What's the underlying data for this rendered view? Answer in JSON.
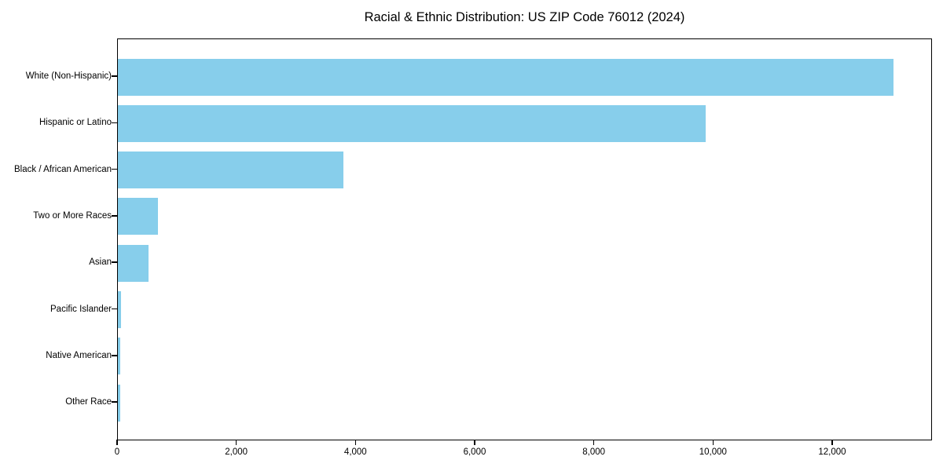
{
  "chart_data": {
    "type": "bar",
    "orientation": "horizontal",
    "title": "Racial & Ethnic Distribution: US ZIP Code 76012 (2024)",
    "categories": [
      "White (Non-Hispanic)",
      "Hispanic or Latino",
      "Black / African American",
      "Two or More Races",
      "Asian",
      "Pacific Islander",
      "Native American",
      "Other Race"
    ],
    "values": [
      13010,
      9870,
      3790,
      675,
      510,
      55,
      45,
      40
    ],
    "xlabel": "",
    "ylabel": "",
    "xlim": [
      0,
      13675
    ],
    "x_ticks": [
      0,
      2000,
      4000,
      6000,
      8000,
      10000,
      12000
    ],
    "x_tick_labels": [
      "0",
      "2,000",
      "4,000",
      "6,000",
      "8,000",
      "10,000",
      "12,000"
    ],
    "bar_color": "#87CEEB",
    "axis_color": "#000000",
    "text_color": "#000000",
    "background_color": "#ffffff",
    "grid": false,
    "legend": "none"
  }
}
